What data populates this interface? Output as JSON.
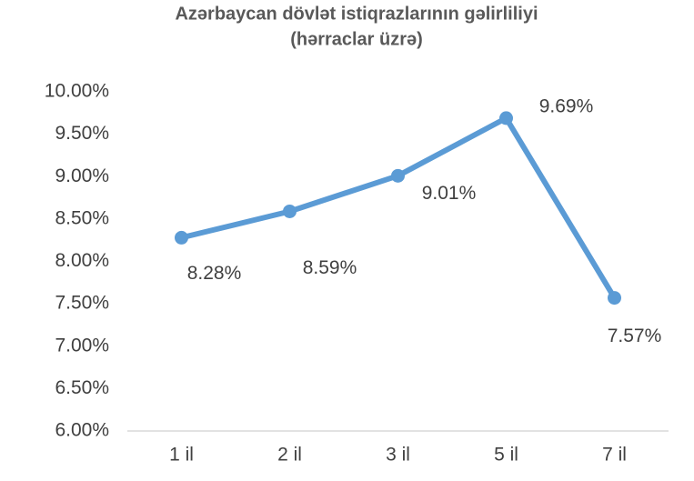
{
  "chart_data": {
    "type": "line",
    "title": "Azərbaycan dövlət istiqrazlarının gəlirliliyi",
    "subtitle": "(hərraclar üzrə)",
    "categories": [
      "1 il",
      "2 il",
      "3 il",
      "5 il",
      "7 il"
    ],
    "values": [
      8.28,
      8.59,
      9.01,
      9.69,
      7.57
    ],
    "value_labels": [
      "8.28%",
      "8.59%",
      "9.01%",
      "9.69%",
      "7.57%"
    ],
    "color": "#5b9bd5",
    "ylim": [
      6,
      10
    ],
    "yticks": [
      {
        "value": 6,
        "label": "6.00%"
      },
      {
        "value": 6.5,
        "label": "6.50%"
      },
      {
        "value": 7,
        "label": "7.00%"
      },
      {
        "value": 7.5,
        "label": "7.50%"
      },
      {
        "value": 8,
        "label": "8.00%"
      },
      {
        "value": 8.5,
        "label": "8.50%"
      },
      {
        "value": 9,
        "label": "9.00%"
      },
      {
        "value": 9.5,
        "label": "9.50%"
      },
      {
        "value": 10,
        "label": "10.00%"
      }
    ],
    "grid": false
  }
}
